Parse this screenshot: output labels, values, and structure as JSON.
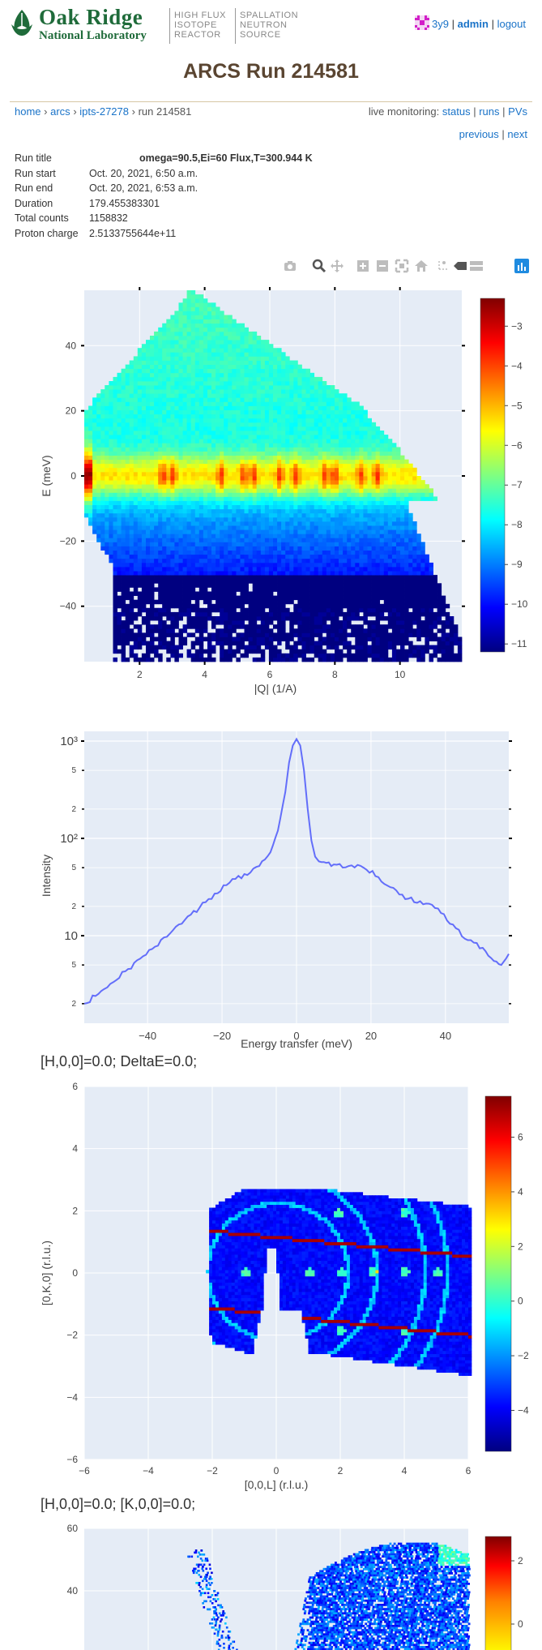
{
  "header": {
    "org_line1": "Oak Ridge",
    "org_line2": "National Laboratory",
    "hfir": [
      "HIGH FLUX",
      "ISOTOPE",
      "REACTOR"
    ],
    "sns": [
      "SPALLATION",
      "NEUTRON",
      "SOURCE"
    ],
    "username": "3y9",
    "admin_label": "admin",
    "logout_label": "logout",
    "sep": "|",
    "brand_color": "#1f6b3a"
  },
  "page_title": "ARCS Run 214581",
  "breadcrumb": {
    "home": "home",
    "instrument": "arcs",
    "proposal": "ipts-27278",
    "current": "run 214581",
    "sep": "›"
  },
  "monitoring": {
    "prefix": "live monitoring:",
    "status": "status",
    "runs": "runs",
    "pvs": "PVs",
    "sep": "|"
  },
  "nav": {
    "previous": "previous",
    "next": "next",
    "sep": "|"
  },
  "run_info": [
    {
      "key": "Run title",
      "value": "omega=90.5,Ei=60 Flux,T=300.944 K"
    },
    {
      "key": "Run start",
      "value": "Oct. 20, 2021, 6:50 a.m."
    },
    {
      "key": "Run end",
      "value": "Oct. 20, 2021, 6:53 a.m."
    },
    {
      "key": "Duration",
      "value": "179.455383301"
    },
    {
      "key": "Total counts",
      "value": "1158832"
    },
    {
      "key": "Proton charge",
      "value": "2.5133755644e+11"
    }
  ],
  "modebar_icons": [
    "camera-icon",
    "zoom-icon",
    "pan-icon",
    "zoom-in-icon",
    "zoom-out-icon",
    "autoscale-icon",
    "reset-axes-icon",
    "spike-lines-icon",
    "hover-closest-icon",
    "hover-compare-icon",
    "plotly-logo-icon"
  ],
  "colorscale": [
    "#000080",
    "#0000ff",
    "#0080ff",
    "#00ffff",
    "#80ff80",
    "#ffff00",
    "#ff8000",
    "#ff0000",
    "#800000"
  ],
  "chart_data": [
    {
      "type": "heatmap",
      "title": "",
      "xlabel": "|Q| (1/A)",
      "ylabel": "E (meV)",
      "xlim": [
        0.3,
        11.9
      ],
      "ylim": [
        -57,
        57
      ],
      "x_ticks": [
        "2",
        "4",
        "6",
        "8",
        "10"
      ],
      "y_ticks": [
        "40",
        "20",
        "0",
        "−20",
        "−40"
      ],
      "colorbar": {
        "ticks": [
          "−3",
          "−4",
          "−5",
          "−6",
          "−7",
          "−8",
          "−9",
          "−10",
          "−11"
        ],
        "range": [
          -11.2,
          -2.3
        ]
      },
      "elastic_peaks_Q": [
        2.7,
        3.0,
        4.5,
        5.2,
        5.5,
        6.3,
        6.8,
        7.7,
        8.0,
        8.8,
        9.3
      ]
    },
    {
      "type": "line",
      "title": "",
      "xlabel": "Energy transfer (meV)",
      "ylabel": "Intensity",
      "y_scale": "log",
      "xlim": [
        -57,
        57
      ],
      "ylim_log10": [
        0.1,
        3.1
      ],
      "x_ticks": [
        "−40",
        "−20",
        "0",
        "20",
        "40"
      ],
      "y_ticks_major": [
        "10",
        "10²",
        "10³"
      ],
      "y_ticks_minor": [
        "2",
        "5",
        "2",
        "5",
        "2",
        "5",
        "2"
      ],
      "x": [
        -57,
        -54,
        -50,
        -46,
        -42,
        -38,
        -34,
        -30,
        -26,
        -22,
        -18,
        -14,
        -10,
        -7,
        -5,
        -3,
        -2,
        -1,
        0,
        1,
        2,
        3,
        4,
        5,
        6,
        8,
        10,
        14,
        18,
        22,
        26,
        30,
        34,
        38,
        42,
        46,
        50,
        53,
        55,
        57
      ],
      "y": [
        2.0,
        2.4,
        3.2,
        4.3,
        5.8,
        7.7,
        10.5,
        14.5,
        19.5,
        27,
        35,
        43,
        52,
        72,
        120,
        300,
        600,
        900,
        1050,
        900,
        500,
        200,
        95,
        65,
        58,
        56,
        54,
        52,
        50,
        40,
        31,
        24,
        21,
        19,
        13,
        9,
        7.5,
        5.5,
        5.0,
        6.5
      ]
    },
    {
      "type": "heatmap",
      "title": "[H,0,0]=0.0; DeltaE=0.0;",
      "xlabel": "[0,0,L] (r.l.u.)",
      "ylabel": "[0,K,0] (r.l.u.)",
      "xlim": [
        -6,
        6
      ],
      "ylim": [
        -6,
        6
      ],
      "x_ticks": [
        "−6",
        "−4",
        "−2",
        "0",
        "2",
        "4",
        "6"
      ],
      "y_ticks": [
        "6",
        "4",
        "2",
        "0",
        "−2",
        "−4",
        "−6"
      ],
      "colorbar": {
        "ticks": [
          "6",
          "4",
          "2",
          "0",
          "−2",
          "−4"
        ],
        "range": [
          -5.5,
          7.5
        ]
      }
    },
    {
      "type": "heatmap",
      "title": "[H,0,0]=0.0; [K,0,0]=0.0;",
      "y_ticks": [
        "60",
        "40"
      ],
      "colorbar": {
        "ticks": [
          "2",
          "0"
        ]
      }
    }
  ]
}
